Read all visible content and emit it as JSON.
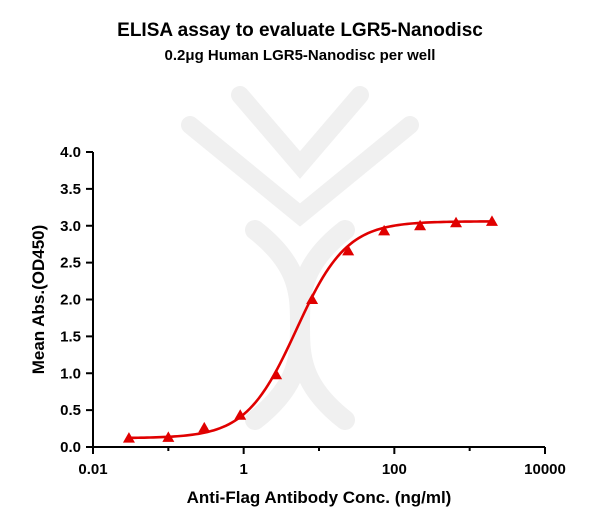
{
  "chart_data": {
    "type": "scatter",
    "title": "ELISA assay to evaluate LGR5-Nanodisc",
    "subtitle": "0.2μg Human LGR5-Nanodisc per well",
    "xlabel": "Anti-Flag Antibody Conc. (ng/ml)",
    "ylabel": "Mean Abs.(OD450)",
    "x_scale": "log",
    "xlim": [
      0.01,
      10000
    ],
    "ylim": [
      0,
      4
    ],
    "x_ticks": [
      0.01,
      1,
      100,
      10000
    ],
    "x_tick_labels": [
      "0.01",
      "1",
      "100",
      "10000"
    ],
    "y_ticks": [
      0,
      0.5,
      1,
      1.5,
      2,
      2.5,
      3,
      3.5,
      4
    ],
    "y_tick_labels": [
      "0.0",
      "0.5",
      "1.0",
      "1.5",
      "2.0",
      "2.5",
      "3.0",
      "3.5",
      "4.0"
    ],
    "grid": false,
    "series": [
      {
        "marker": "triangle",
        "color": "#e00000",
        "fit": "four-parameter logistic",
        "x": [
          0.03,
          0.1,
          0.3,
          0.9,
          2.7,
          8.1,
          24.4,
          73.2,
          219.7,
          659.2,
          1977.5
        ],
        "y": [
          0.12,
          0.13,
          0.26,
          0.43,
          0.98,
          2.0,
          2.66,
          2.93,
          3.0,
          3.04,
          3.06
        ]
      }
    ],
    "fit_params": {
      "bottom": 0.12,
      "top": 3.06,
      "ec50": 5.0,
      "hill": 1.3
    },
    "colors": {
      "axis": "#000000",
      "series": "#e00000",
      "watermark": "#f0f0f0"
    }
  }
}
